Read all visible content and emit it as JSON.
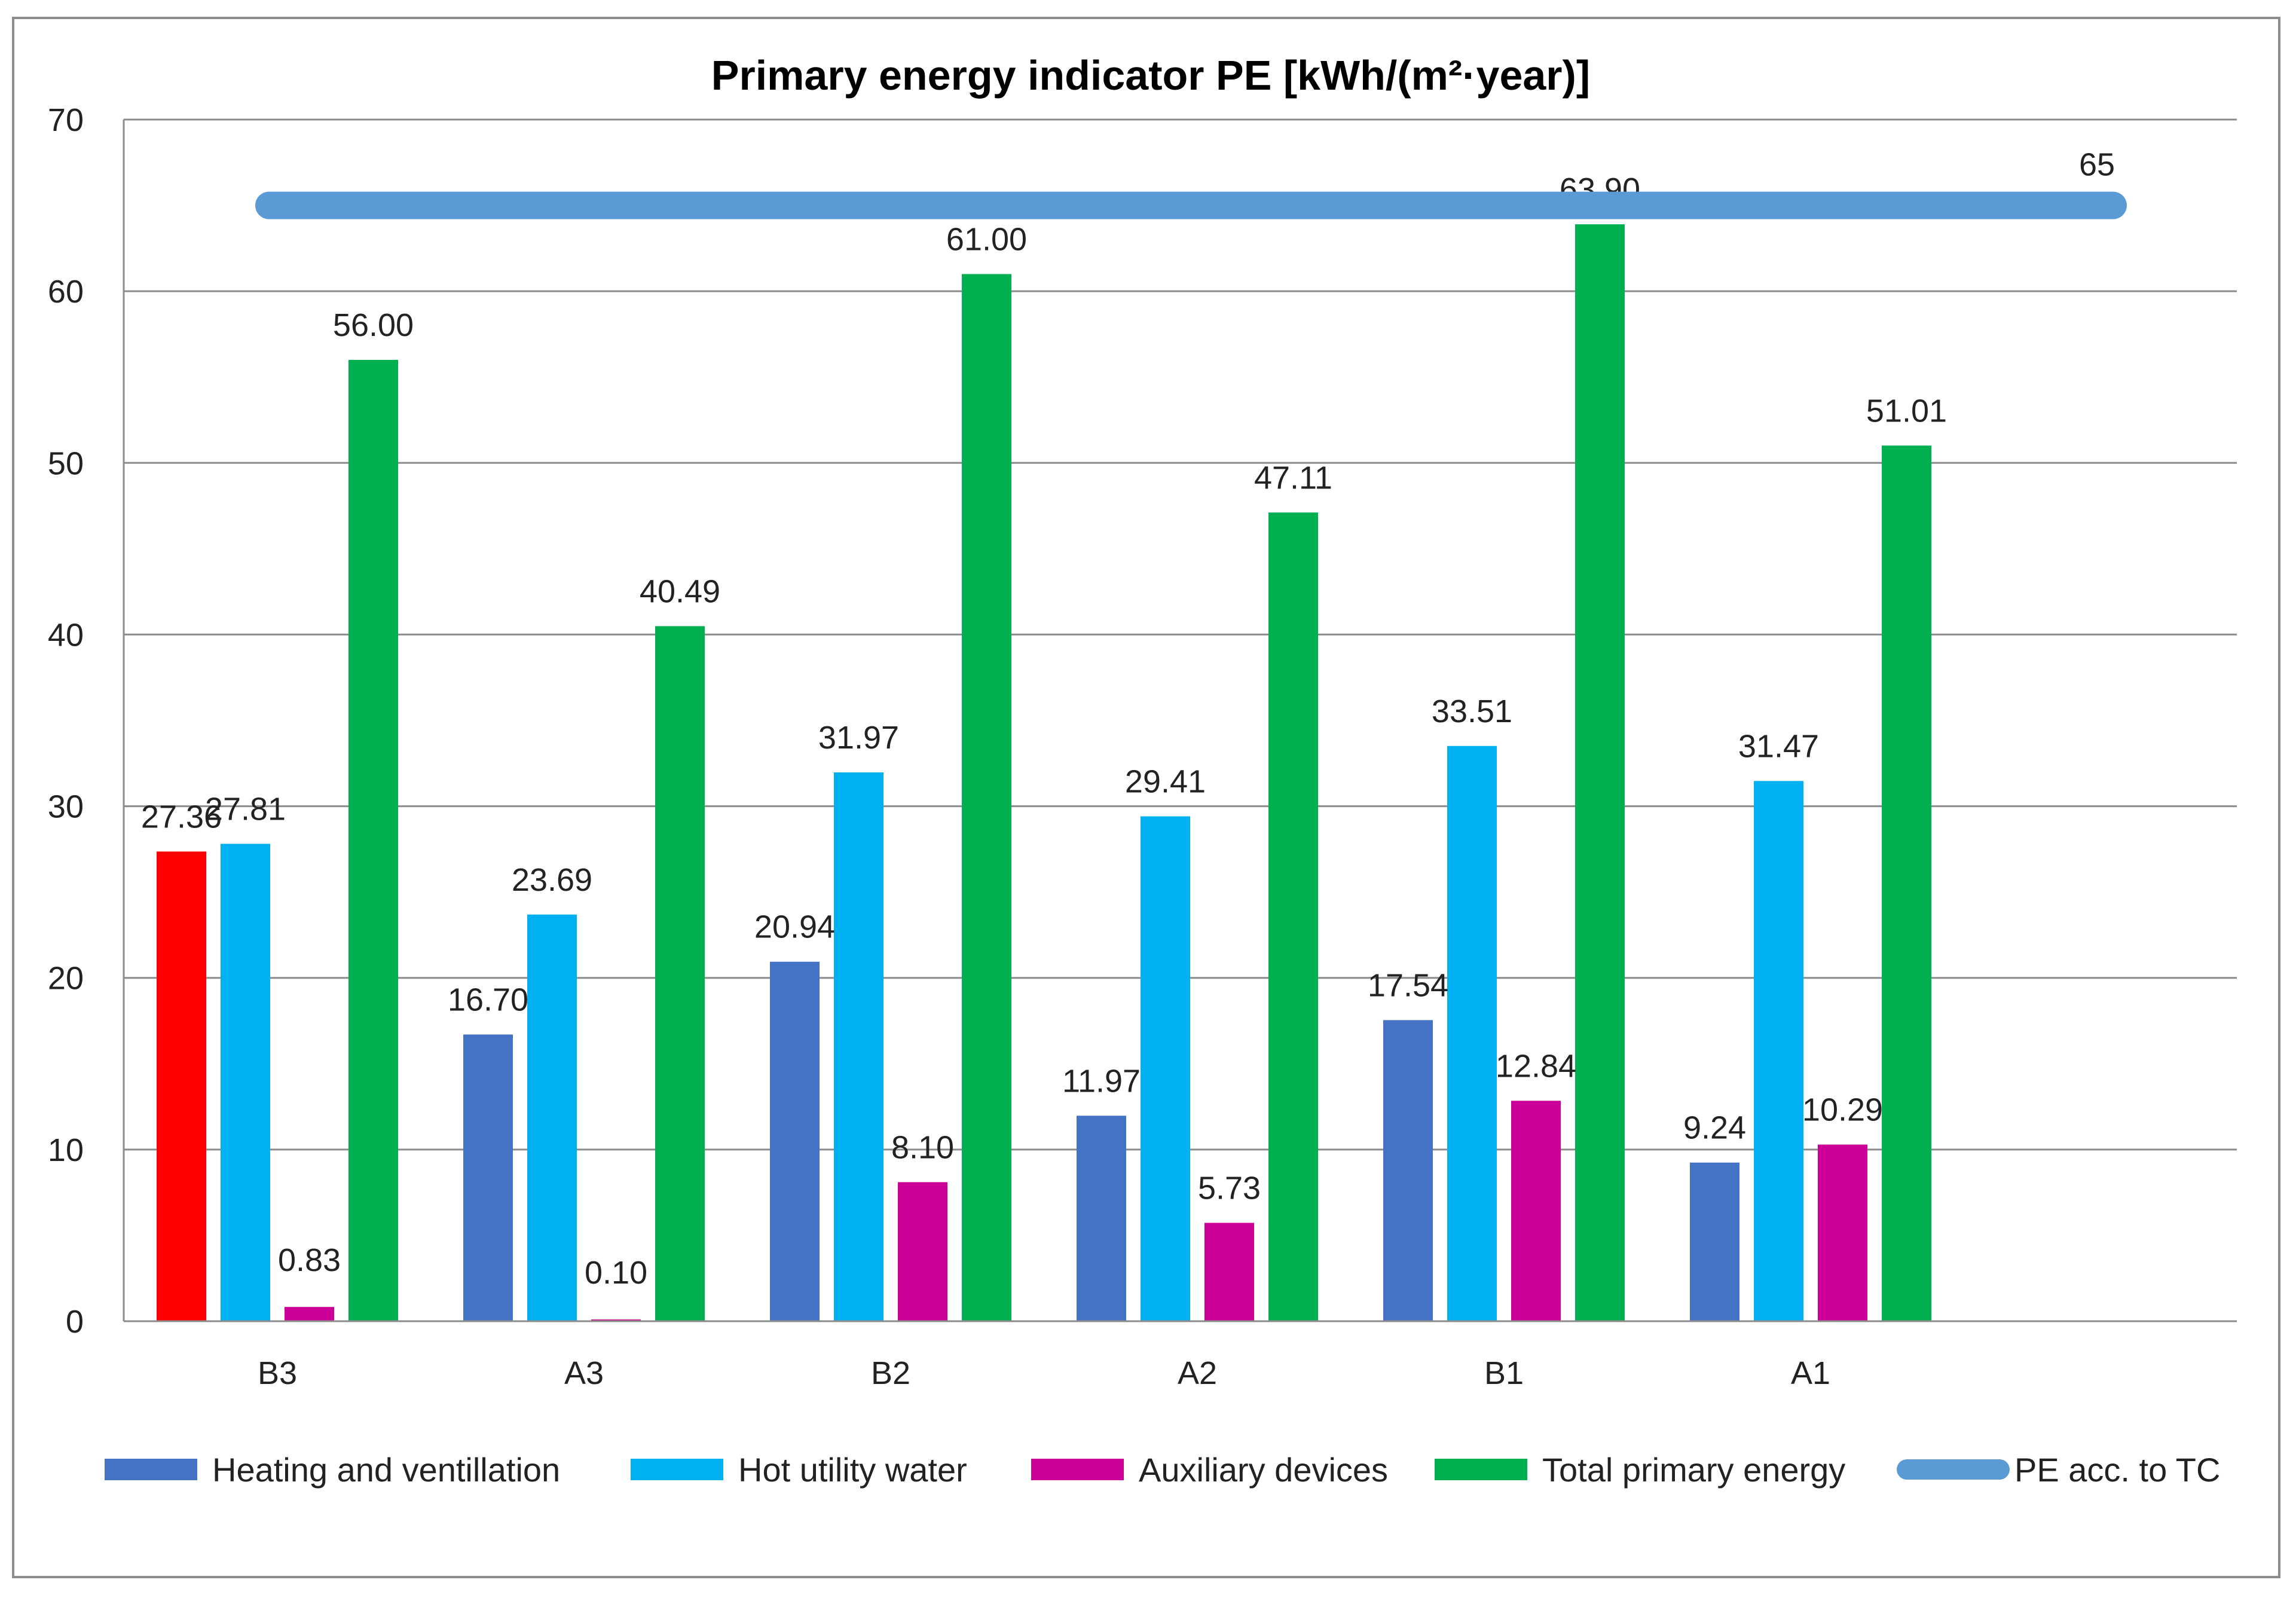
{
  "chart_data": {
    "type": "bar",
    "title": "Primary energy indicator PE [kWh/(m²·year)]",
    "xlabel": "",
    "ylabel": "",
    "ylim": [
      0,
      70
    ],
    "yticks": [
      "0",
      "10",
      "20",
      "30",
      "40",
      "50",
      "60",
      "70"
    ],
    "grid": true,
    "legend_position": "bottom",
    "categories": [
      "B3",
      "A3",
      "B2",
      "A2",
      "B1",
      "A1"
    ],
    "series": [
      {
        "name": "Heating and ventillation",
        "color": "#4472C4",
        "values": [
          27.36,
          16.7,
          20.94,
          11.97,
          17.54,
          9.24
        ],
        "labels": [
          "27.36",
          "16.70",
          "20.94",
          "11.97",
          "17.54",
          "9.24"
        ],
        "point_colors": [
          "#FF0000",
          null,
          null,
          null,
          null,
          null
        ]
      },
      {
        "name": "Hot utility water",
        "color": "#00B0F0",
        "values": [
          27.81,
          23.69,
          31.97,
          29.41,
          33.51,
          31.47
        ],
        "labels": [
          "27.81",
          "23.69",
          "31.97",
          "29.41",
          "33.51",
          "31.47"
        ]
      },
      {
        "name": "Auxiliary devices",
        "color": "#CC0099",
        "values": [
          0.83,
          0.1,
          8.1,
          5.73,
          12.84,
          10.29
        ],
        "labels": [
          "0.83",
          "0.10",
          "8.10",
          "5.73",
          "12.84",
          "10.29"
        ]
      },
      {
        "name": "Total primary energy",
        "color": "#00B050",
        "values": [
          56.0,
          40.49,
          61.0,
          47.11,
          63.9,
          51.01
        ],
        "labels": [
          "56.00",
          "40.49",
          "61.00",
          "47.11",
          "63.90",
          "51.01"
        ]
      }
    ],
    "reference_line": {
      "name": "PE acc. to TC",
      "value": 65,
      "label": "65",
      "color": "#5B9BD5"
    }
  }
}
